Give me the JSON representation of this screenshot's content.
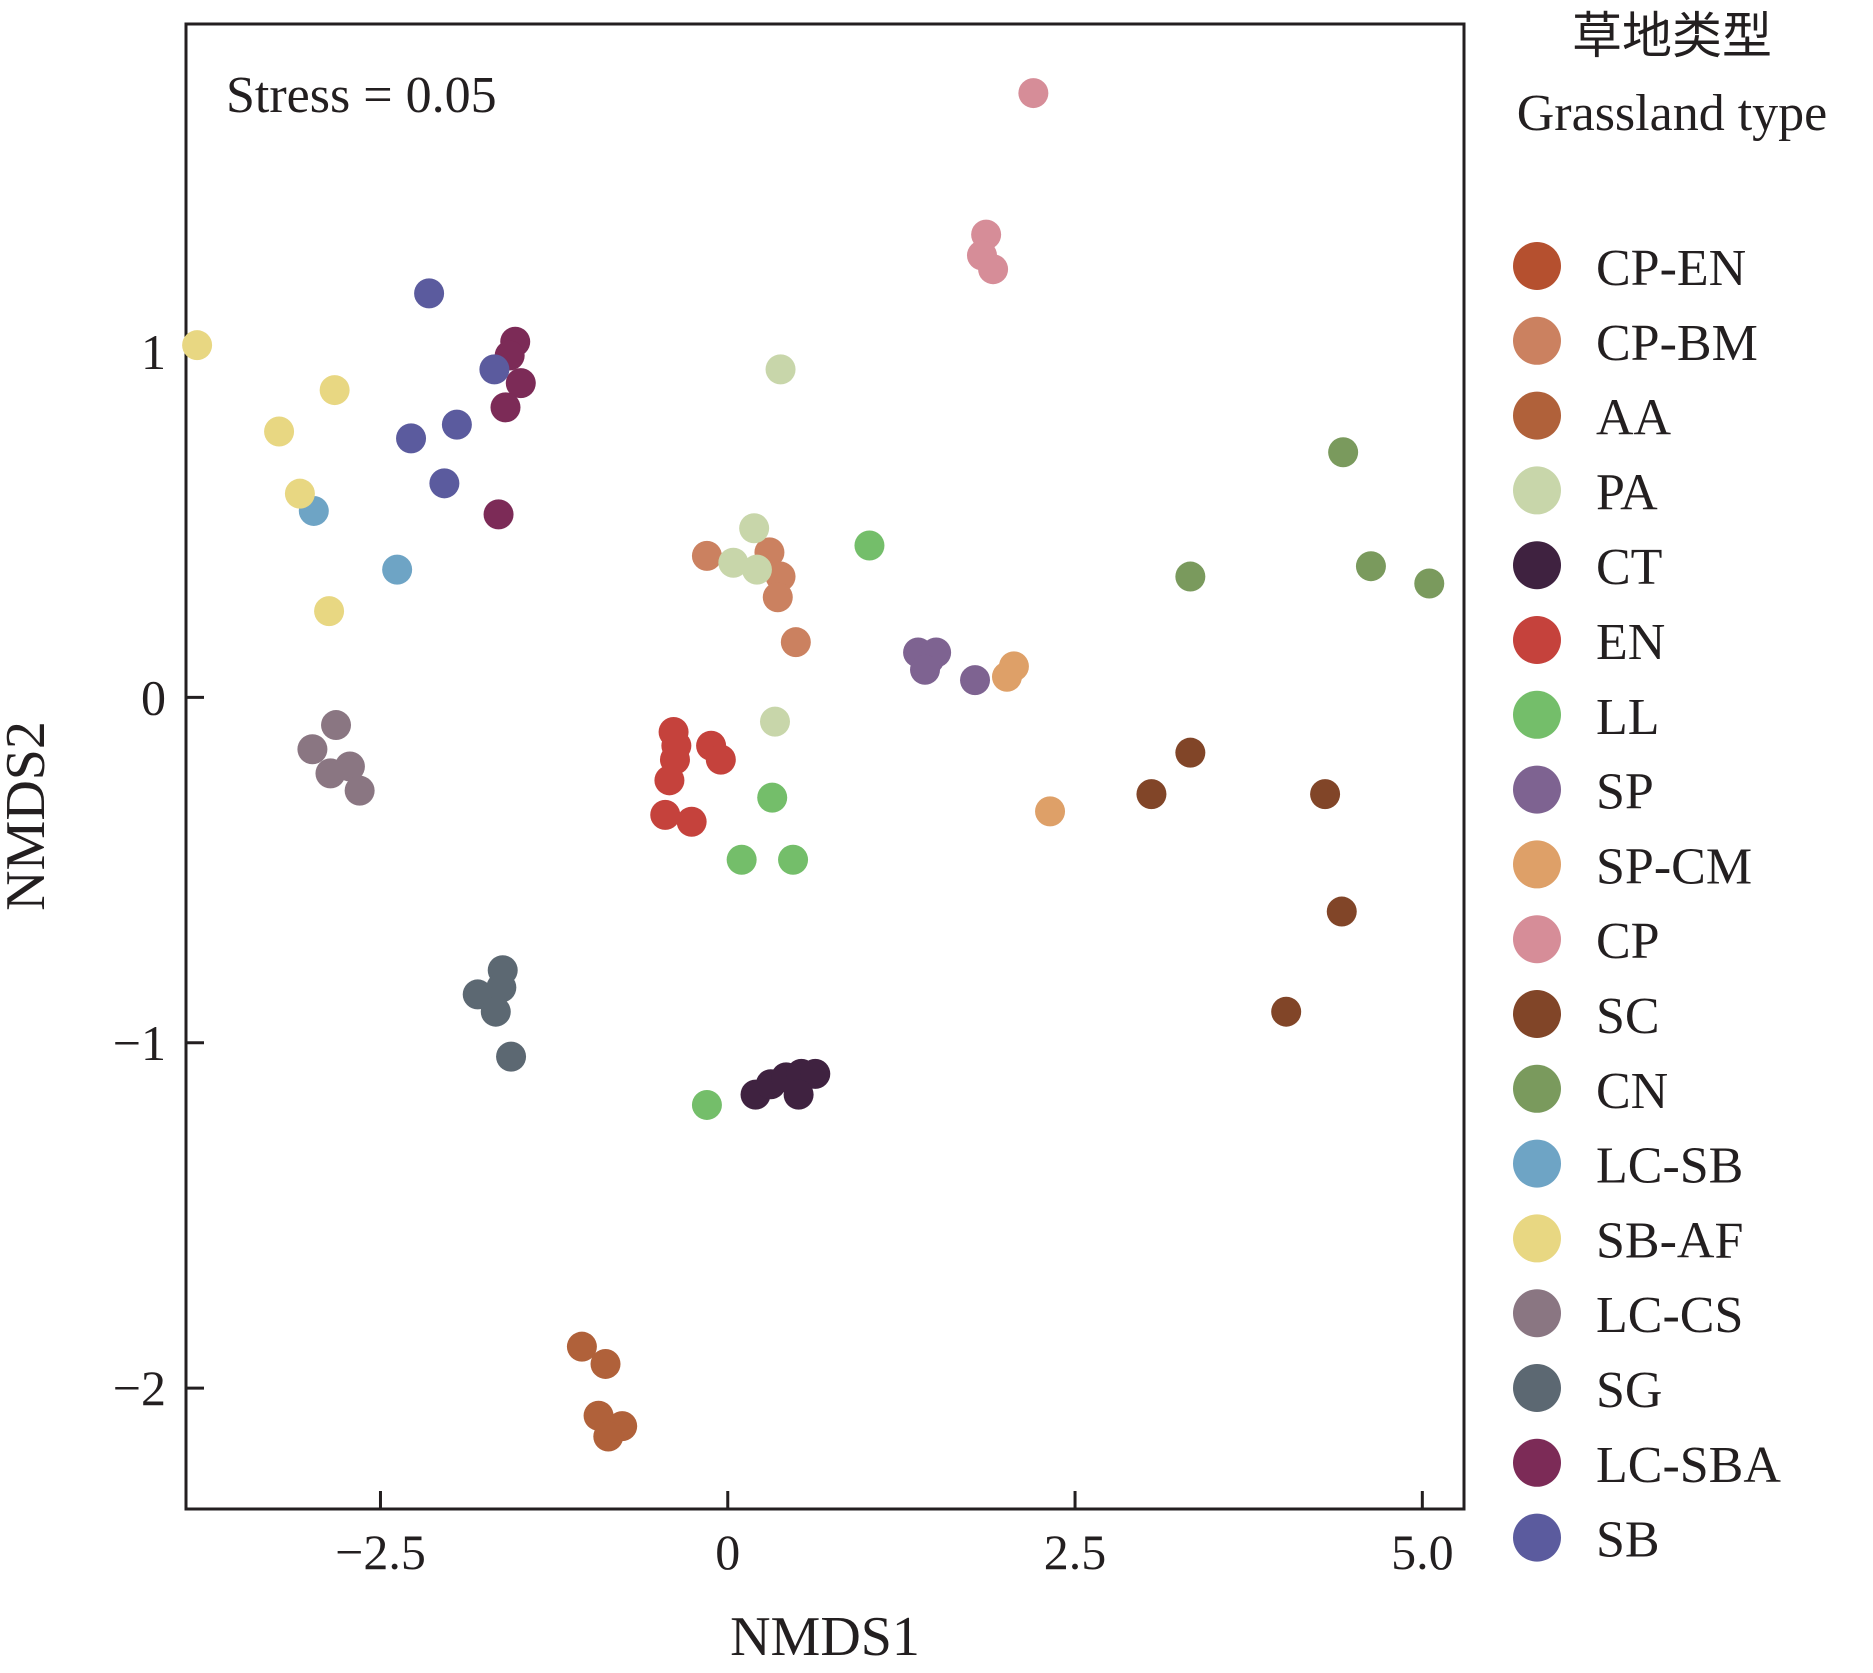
{
  "chart_data": {
    "type": "scatter",
    "xlabel": "NMDS1",
    "ylabel": "NMDS2",
    "xlim": [
      -3.9,
      5.3
    ],
    "ylim": [
      -2.35,
      1.95
    ],
    "xticks": [
      -2.5,
      0,
      2.5,
      5.0
    ],
    "xtick_labels": [
      "−2.5",
      "0",
      "2.5",
      "5.0"
    ],
    "yticks": [
      -2,
      -1,
      0,
      1
    ],
    "ytick_labels": [
      "−2",
      "−1",
      "0",
      "1"
    ],
    "annotation": "Stress = 0.05",
    "legend": {
      "title_zh": "草地类型",
      "title_en": "Grassland type",
      "position": "right"
    },
    "grid": false,
    "series": [
      {
        "name": "CP-EN",
        "color": "#b5502f",
        "points": []
      },
      {
        "name": "CP-BM",
        "color": "#cb8160",
        "points": [
          [
            -0.15,
            0.41
          ],
          [
            0.3,
            0.42
          ],
          [
            0.38,
            0.35
          ],
          [
            0.36,
            0.29
          ],
          [
            0.49,
            0.16
          ]
        ]
      },
      {
        "name": "AA",
        "color": "#b0613a",
        "points": [
          [
            -1.05,
            -1.88
          ],
          [
            -0.88,
            -1.93
          ],
          [
            -0.93,
            -2.08
          ],
          [
            -0.76,
            -2.11
          ],
          [
            -0.86,
            -2.14
          ]
        ]
      },
      {
        "name": "PA",
        "color": "#c8d6aa",
        "points": [
          [
            0.38,
            0.95
          ],
          [
            0.19,
            0.49
          ],
          [
            0.04,
            0.39
          ],
          [
            0.21,
            0.37
          ],
          [
            0.34,
            -0.07
          ]
        ]
      },
      {
        "name": "CT",
        "color": "#3f2240",
        "points": [
          [
            0.2,
            -1.15
          ],
          [
            0.31,
            -1.12
          ],
          [
            0.42,
            -1.1
          ],
          [
            0.53,
            -1.09
          ],
          [
            0.63,
            -1.09
          ],
          [
            0.51,
            -1.15
          ]
        ]
      },
      {
        "name": "EN",
        "color": "#c5423c",
        "points": [
          [
            -0.39,
            -0.1
          ],
          [
            -0.37,
            -0.14
          ],
          [
            -0.38,
            -0.18
          ],
          [
            -0.42,
            -0.24
          ],
          [
            -0.45,
            -0.34
          ],
          [
            -0.26,
            -0.36
          ],
          [
            -0.12,
            -0.14
          ],
          [
            -0.05,
            -0.18
          ]
        ]
      },
      {
        "name": "LL",
        "color": "#74be6a",
        "points": [
          [
            1.02,
            0.44
          ],
          [
            0.32,
            -0.29
          ],
          [
            0.1,
            -0.47
          ],
          [
            0.47,
            -0.47
          ],
          [
            -0.15,
            -1.18
          ]
        ]
      },
      {
        "name": "SP",
        "color": "#7e6391",
        "points": [
          [
            1.37,
            0.13
          ],
          [
            1.45,
            0.11
          ],
          [
            1.5,
            0.13
          ],
          [
            1.42,
            0.08
          ],
          [
            1.78,
            0.05
          ]
        ]
      },
      {
        "name": "SP-CM",
        "color": "#dea068",
        "points": [
          [
            2.06,
            0.09
          ],
          [
            2.01,
            0.06
          ],
          [
            2.32,
            -0.33
          ]
        ]
      },
      {
        "name": "CP",
        "color": "#d68d98",
        "points": [
          [
            2.2,
            1.75
          ],
          [
            1.86,
            1.34
          ],
          [
            1.83,
            1.28
          ],
          [
            1.91,
            1.24
          ]
        ]
      },
      {
        "name": "SC",
        "color": "#814528",
        "points": [
          [
            3.33,
            -0.16
          ],
          [
            3.05,
            -0.28
          ],
          [
            4.3,
            -0.28
          ],
          [
            4.42,
            -0.62
          ],
          [
            4.02,
            -0.91
          ]
        ]
      },
      {
        "name": "CN",
        "color": "#7a9a5d",
        "points": [
          [
            4.43,
            0.71
          ],
          [
            4.63,
            0.38
          ],
          [
            5.05,
            0.33
          ],
          [
            3.33,
            0.35
          ]
        ]
      },
      {
        "name": "LC-SB",
        "color": "#6ea4c5",
        "points": [
          [
            -2.98,
            0.54
          ],
          [
            -2.38,
            0.37
          ]
        ]
      },
      {
        "name": "SB-AF",
        "color": "#e8d782",
        "points": [
          [
            -3.82,
            1.02
          ],
          [
            -2.83,
            0.89
          ],
          [
            -3.23,
            0.77
          ],
          [
            -3.08,
            0.59
          ],
          [
            -2.87,
            0.25
          ]
        ]
      },
      {
        "name": "LC-CS",
        "color": "#8a7682",
        "points": [
          [
            -2.82,
            -0.08
          ],
          [
            -2.99,
            -0.15
          ],
          [
            -2.86,
            -0.22
          ],
          [
            -2.72,
            -0.2
          ],
          [
            -2.65,
            -0.27
          ]
        ]
      },
      {
        "name": "SG",
        "color": "#5c6872",
        "points": [
          [
            -1.62,
            -0.79
          ],
          [
            -1.63,
            -0.84
          ],
          [
            -1.8,
            -0.86
          ],
          [
            -1.67,
            -0.91
          ],
          [
            -1.56,
            -1.04
          ]
        ]
      },
      {
        "name": "LC-SBA",
        "color": "#7c2b57",
        "points": [
          [
            -1.53,
            1.03
          ],
          [
            -1.57,
            0.99
          ],
          [
            -1.49,
            0.91
          ],
          [
            -1.6,
            0.84
          ],
          [
            -1.65,
            0.53
          ]
        ]
      },
      {
        "name": "SB",
        "color": "#5b5b9e",
        "points": [
          [
            -2.15,
            1.17
          ],
          [
            -1.68,
            0.95
          ],
          [
            -1.95,
            0.79
          ],
          [
            -2.28,
            0.75
          ],
          [
            -2.04,
            0.62
          ]
        ]
      }
    ]
  }
}
